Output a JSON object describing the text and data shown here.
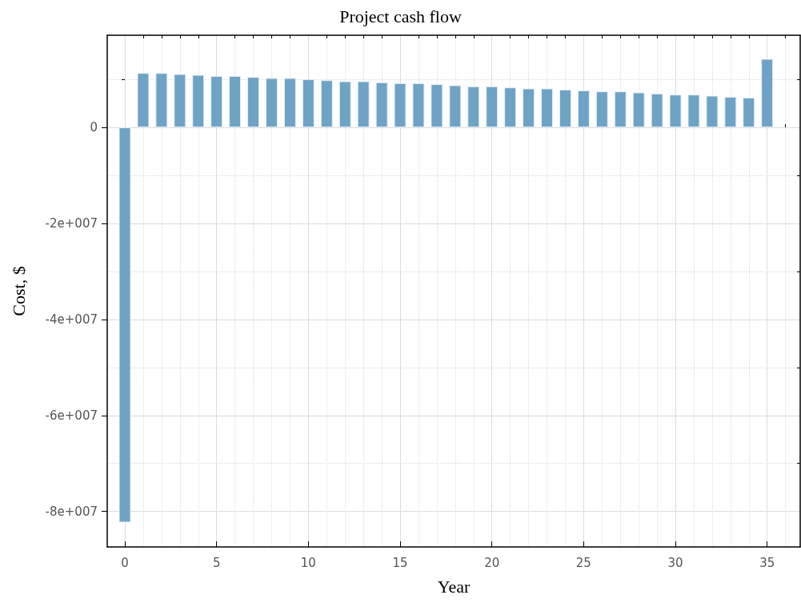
{
  "chart_data": {
    "type": "bar",
    "title": "Project cash flow",
    "xlabel": "Year",
    "ylabel": "Cost, $",
    "x": [
      0,
      1,
      2,
      3,
      4,
      5,
      6,
      7,
      8,
      9,
      10,
      11,
      12,
      13,
      14,
      15,
      16,
      17,
      18,
      19,
      20,
      21,
      22,
      23,
      24,
      25,
      26,
      27,
      28,
      29,
      30,
      31,
      32,
      33,
      34,
      35
    ],
    "values": [
      -82300000,
      11330000,
      11330000,
      11110000,
      10940000,
      10720000,
      10720000,
      10500000,
      10280000,
      10280000,
      10060000,
      9830000,
      9610000,
      9610000,
      9390000,
      9220000,
      9220000,
      9000000,
      8780000,
      8560000,
      8560000,
      8330000,
      8110000,
      8110000,
      7890000,
      7720000,
      7500000,
      7500000,
      7280000,
      7060000,
      6830000,
      6830000,
      6610000,
      6390000,
      6220000,
      14280000
    ],
    "color": "#6fa3c5",
    "xlim": [
      -0.96,
      36.8
    ],
    "xticks": [
      0,
      {
        "value": 1,
        "label": null
      },
      {
        "value": 2,
        "label": null
      },
      {
        "value": 3,
        "label": null
      },
      {
        "value": 4,
        "label": null
      },
      5,
      {
        "value": 6,
        "label": null
      },
      {
        "value": 7,
        "label": null
      },
      {
        "value": 8,
        "label": null
      },
      {
        "value": 9,
        "label": null
      },
      10,
      {
        "value": 11,
        "label": null
      },
      {
        "value": 12,
        "label": null
      },
      {
        "value": 13,
        "label": null
      },
      {
        "value": 14,
        "label": null
      },
      15,
      {
        "value": 16,
        "label": null
      },
      {
        "value": 17,
        "label": null
      },
      {
        "value": 18,
        "label": null
      },
      {
        "value": 19,
        "label": null
      },
      20,
      {
        "value": 21,
        "label": null
      },
      {
        "value": 22,
        "label": null
      },
      {
        "value": 23,
        "label": null
      },
      {
        "value": 24,
        "label": null
      },
      25,
      {
        "value": 26,
        "label": null
      },
      {
        "value": 27,
        "label": null
      },
      {
        "value": 28,
        "label": null
      },
      {
        "value": 29,
        "label": null
      },
      30,
      {
        "value": 31,
        "label": null
      },
      {
        "value": 32,
        "label": null
      },
      {
        "value": 33,
        "label": null
      },
      {
        "value": 34,
        "label": null
      },
      35,
      {
        "value": 36,
        "label": null
      }
    ],
    "ylim": [
      -87400000,
      19200000
    ],
    "yticks": [
      {
        "value": -80000000,
        "label": "-8e+007"
      },
      {
        "value": -70000000,
        "label": null
      },
      {
        "value": -60000000,
        "label": "-6e+007"
      },
      {
        "value": -50000000,
        "label": null
      },
      {
        "value": -40000000,
        "label": "-4e+007"
      },
      {
        "value": -30000000,
        "label": null
      },
      {
        "value": -20000000,
        "label": "-2e+007"
      },
      {
        "value": -10000000,
        "label": null
      },
      0,
      {
        "value": 10000000,
        "label": null
      }
    ],
    "grid": true
  }
}
